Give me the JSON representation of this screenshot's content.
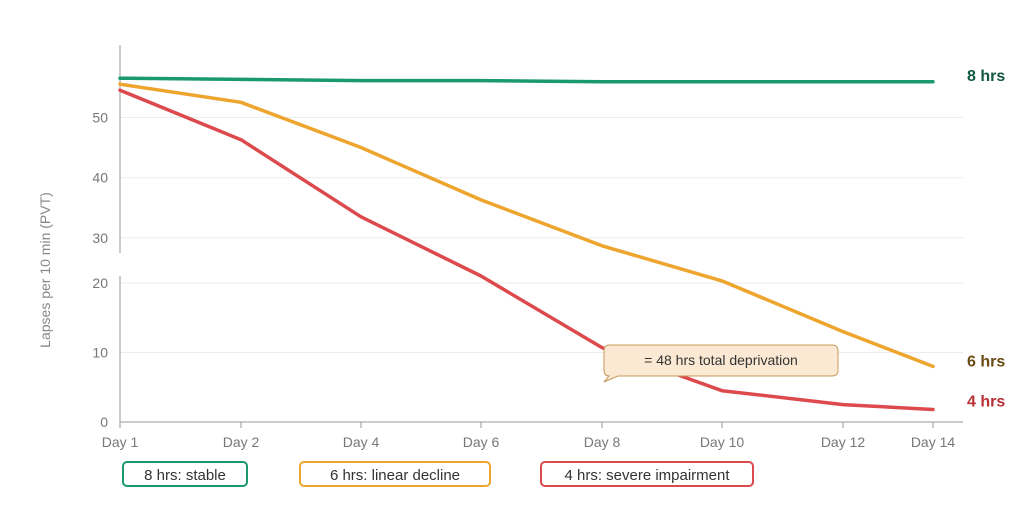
{
  "chart_data": {
    "type": "line",
    "categories": [
      "Day 1",
      "Day 2",
      "Day 4",
      "Day 6",
      "Day 8",
      "Day 10",
      "Day 12",
      "Day 14"
    ],
    "ylabel": "Lapses per 10 min (PVT)",
    "yticks_upper": [
      30,
      40,
      50
    ],
    "yticks_lower": [
      0,
      10,
      20
    ],
    "ylim_upper": [
      27.5,
      62
    ],
    "ylim_lower": [
      0,
      21
    ],
    "axis_break": true,
    "grid": true,
    "series": [
      {
        "name": "8 hrs",
        "end_label": "8 hrs",
        "legend": "8 hrs: stable",
        "color": "#1a9a6c",
        "label_color": "#11583f",
        "values": [
          56.5,
          56.3,
          56.1,
          56.1,
          55.9,
          55.9,
          55.9,
          55.9
        ]
      },
      {
        "name": "6 hrs",
        "end_label": "6 hrs",
        "legend": "6 hrs: linear decline",
        "color": "#eda52e",
        "label_color": "#6b4a12",
        "values": [
          55.5,
          52.5,
          45,
          36.3,
          28.7,
          20.3,
          13,
          8
        ]
      },
      {
        "name": "4 hrs",
        "end_label": "4 hrs",
        "legend": "4 hrs: severe impairment",
        "color": "#dc4a4d",
        "label_color": "#b82f33",
        "values": [
          54.5,
          46.3,
          33.5,
          21.2,
          10.7,
          4.5,
          2.5,
          1.8
        ]
      }
    ],
    "annotation": {
      "text": "= 48 hrs total deprivation",
      "category": "Day 8"
    }
  }
}
